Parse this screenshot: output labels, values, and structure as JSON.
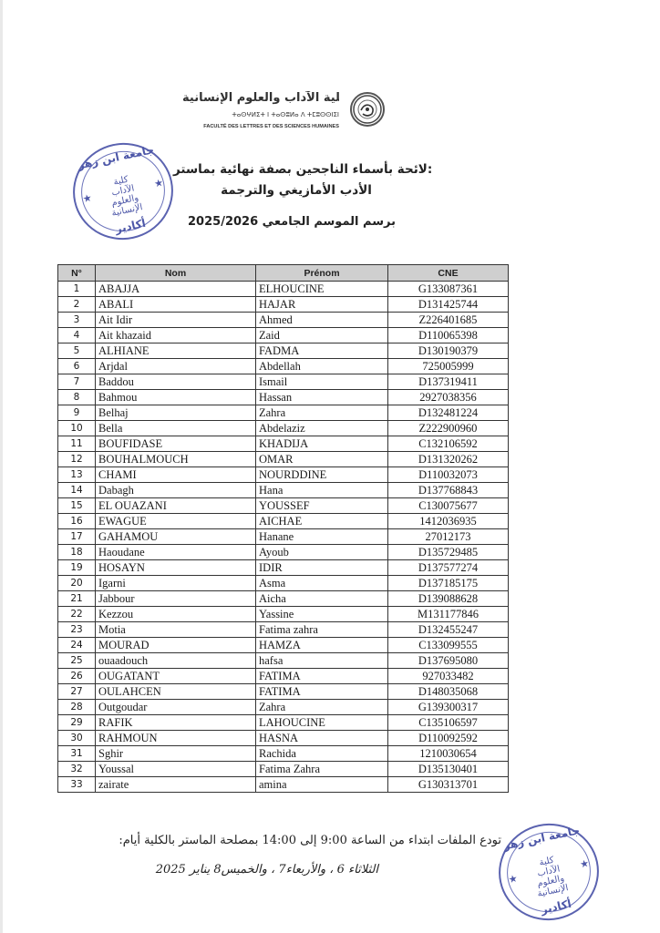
{
  "header": {
    "arabic": "كلية الآداب والعلوم الإنسانية",
    "tifinagh": "ⵜⴰⵙⵖⵍⵉⵜ ⵏ ⵜⴰⵙⵓⵍⴰ ⴷ ⵜⵎⵓⵙⵙⵏⵉⵏ",
    "french": "FACULTÉ DES LETTRES ET DES SCIENCES HUMAINES"
  },
  "title": {
    "line1": "لائحة بأسماء الناجحين بصفة نهائية بماستر:",
    "line2": "الأدب الأمازيغي والترجمة",
    "line3": "برسم الموسم الجامعي 2025/2026"
  },
  "stamp": {
    "top_text": "جامعة ابن زهر",
    "center_line1": "كلية",
    "center_line2": "الآداب",
    "center_line3": "والعلوم",
    "center_line4": "الإنسانية",
    "bottom_text": "أكادير"
  },
  "table": {
    "headers": [
      "N°",
      "Nom",
      "Prénom",
      "CNE"
    ],
    "rows": [
      {
        "n": "1",
        "nom": "ABAJJA",
        "prenom": "ELHOUCINE",
        "cne": "G133087361"
      },
      {
        "n": "2",
        "nom": "ABALI",
        "prenom": "HAJAR",
        "cne": "D131425744"
      },
      {
        "n": "3",
        "nom": "Ait Idir",
        "prenom": "Ahmed",
        "cne": "Z226401685"
      },
      {
        "n": "4",
        "nom": "Ait khazaid",
        "prenom": "Zaid",
        "cne": "D110065398"
      },
      {
        "n": "5",
        "nom": "ALHIANE",
        "prenom": "FADMA",
        "cne": "D130190379"
      },
      {
        "n": "6",
        "nom": "Arjdal",
        "prenom": "Abdellah",
        "cne": "725005999"
      },
      {
        "n": "7",
        "nom": "Baddou",
        "prenom": "Ismail",
        "cne": "D137319411"
      },
      {
        "n": "8",
        "nom": "Bahmou",
        "prenom": "Hassan",
        "cne": "2927038356"
      },
      {
        "n": "9",
        "nom": "Belhaj",
        "prenom": "Zahra",
        "cne": "D132481224"
      },
      {
        "n": "10",
        "nom": "Bella",
        "prenom": "Abdelaziz",
        "cne": "Z222900960"
      },
      {
        "n": "11",
        "nom": "BOUFIDASE",
        "prenom": "KHADIJA",
        "cne": "C132106592"
      },
      {
        "n": "12",
        "nom": "BOUHALMOUCH",
        "prenom": "OMAR",
        "cne": "D131320262"
      },
      {
        "n": "13",
        "nom": "CHAMI",
        "prenom": "NOURDDINE",
        "cne": "D110032073"
      },
      {
        "n": "14",
        "nom": "Dabagh",
        "prenom": "Hana",
        "cne": "D137768843"
      },
      {
        "n": "15",
        "nom": "EL OUAZANI",
        "prenom": "YOUSSEF",
        "cne": "C130075677"
      },
      {
        "n": "16",
        "nom": "EWAGUE",
        "prenom": "AICHAE",
        "cne": "1412036935"
      },
      {
        "n": "17",
        "nom": "GAHAMOU",
        "prenom": "Hanane",
        "cne": "27012173"
      },
      {
        "n": "18",
        "nom": "Haoudane",
        "prenom": "Ayoub",
        "cne": "D135729485"
      },
      {
        "n": "19",
        "nom": "HOSAYN",
        "prenom": "IDIR",
        "cne": "D137577274"
      },
      {
        "n": "20",
        "nom": "Igarni",
        "prenom": "Asma",
        "cne": "D137185175"
      },
      {
        "n": "21",
        "nom": "Jabbour",
        "prenom": "Aicha",
        "cne": "D139088628"
      },
      {
        "n": "22",
        "nom": "Kezzou",
        "prenom": "Yassine",
        "cne": "M131177846"
      },
      {
        "n": "23",
        "nom": "Motia",
        "prenom": "Fatima zahra",
        "cne": "D132455247"
      },
      {
        "n": "24",
        "nom": "MOURAD",
        "prenom": "HAMZA",
        "cne": "C133099555"
      },
      {
        "n": "25",
        "nom": "ouaadouch",
        "prenom": "hafsa",
        "cne": "D137695080"
      },
      {
        "n": "26",
        "nom": "OUGATANT",
        "prenom": "FATIMA",
        "cne": "927033482"
      },
      {
        "n": "27",
        "nom": "OULAHCEN",
        "prenom": "FATIMA",
        "cne": "D148035068"
      },
      {
        "n": "28",
        "nom": "Outgoudar",
        "prenom": "Zahra",
        "cne": "G139300317"
      },
      {
        "n": "29",
        "nom": "RAFIK",
        "prenom": "LAHOUCINE",
        "cne": "C135106597"
      },
      {
        "n": "30",
        "nom": "RAHMOUN",
        "prenom": "HASNA",
        "cne": "D110092592"
      },
      {
        "n": "31",
        "nom": "Sghir",
        "prenom": "Rachida",
        "cne": "1210030654"
      },
      {
        "n": "32",
        "nom": "Youssal",
        "prenom": "Fatima Zahra",
        "cne": "D135130401"
      },
      {
        "n": "33",
        "nom": "zairate",
        "prenom": "amina",
        "cne": "G130313701"
      }
    ]
  },
  "footer": {
    "line1": "تودع الملفات ابتداء من الساعة 9:00 إلى 14:00 بمصلحة الماستر بالكلية أيام:",
    "line2": "الثلاثاء 6 ، والأربعاء7 ، والخميس8 يناير 2025"
  },
  "colors": {
    "stamp": "#4d57a8",
    "header_fill": "#cfcfcf",
    "text": "#1a1a1a"
  }
}
